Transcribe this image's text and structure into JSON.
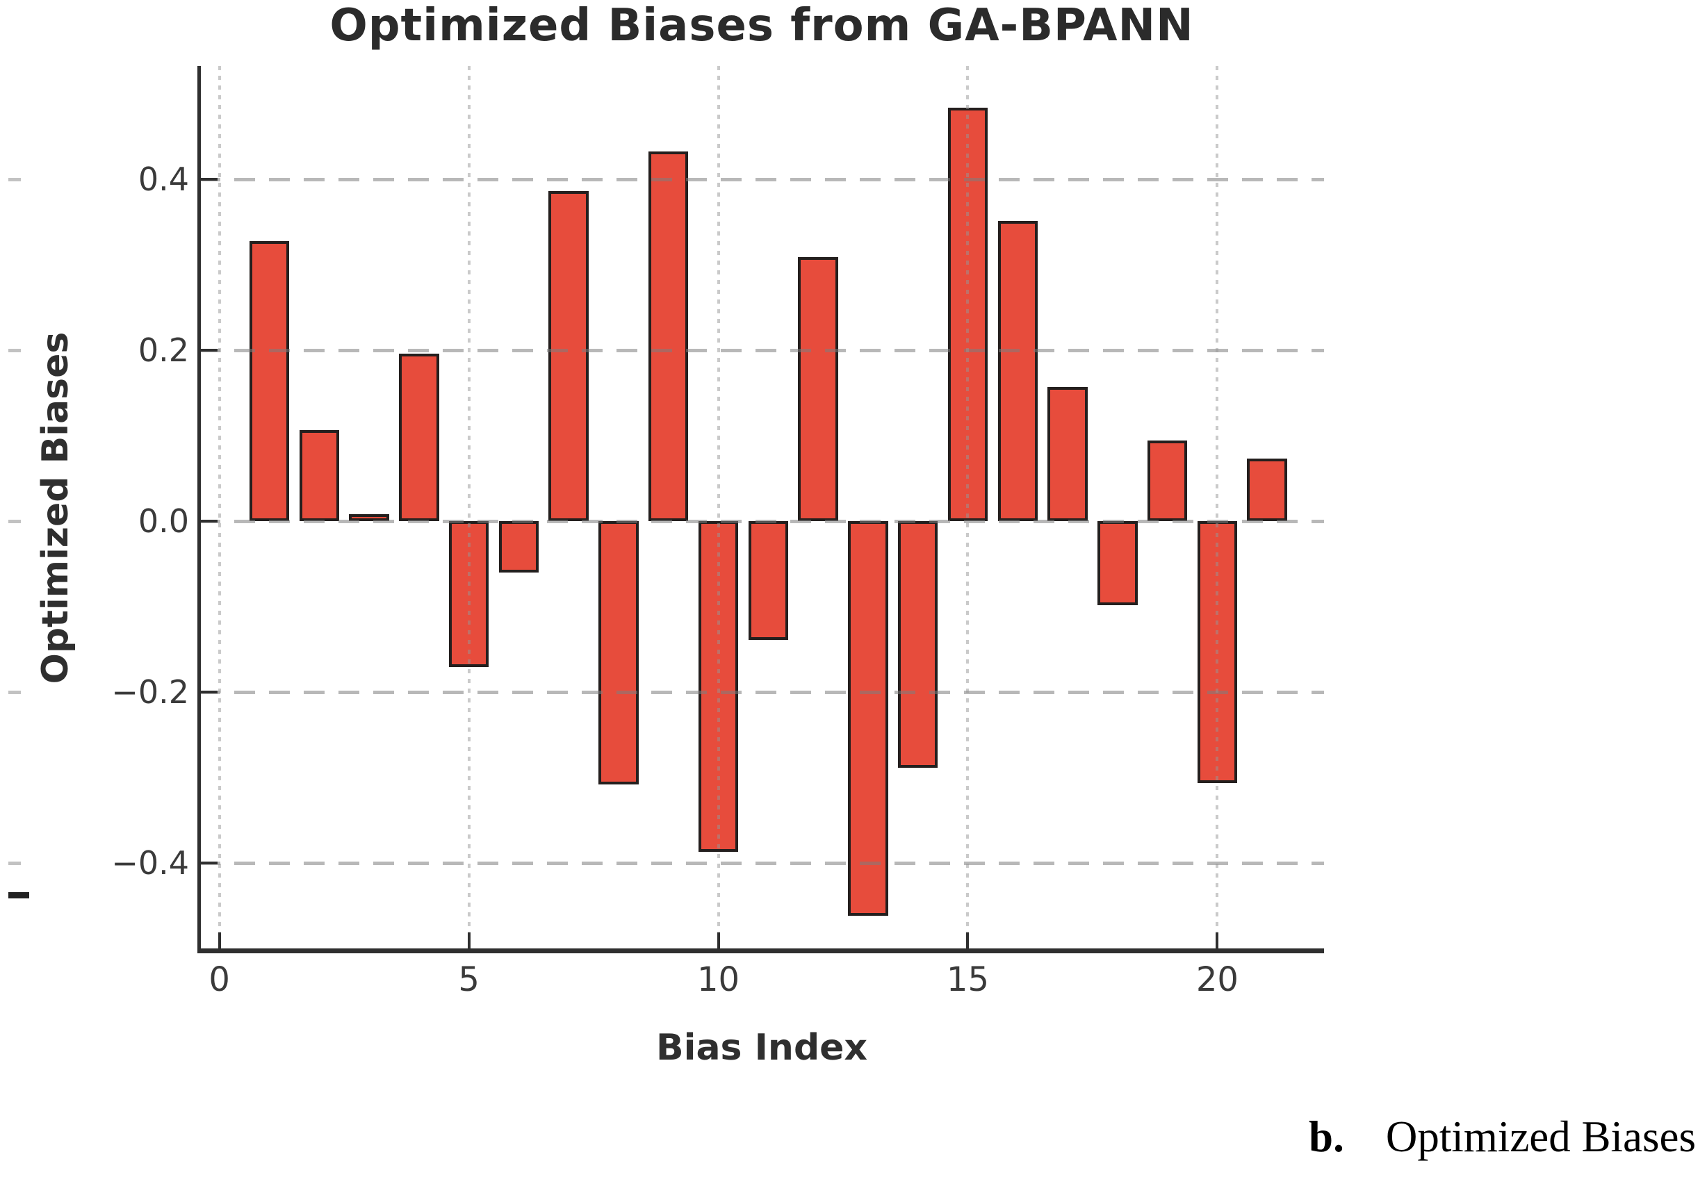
{
  "figure": {
    "caption_label": "b.",
    "caption_text": "Optimized Biases"
  },
  "chart_data": {
    "type": "bar",
    "title": "Optimized Biases from GA-BPANN",
    "xlabel": "Bias Index",
    "ylabel": "Optimized Biases",
    "x": [
      1,
      2,
      3,
      4,
      5,
      6,
      7,
      8,
      9,
      10,
      11,
      12,
      13,
      14,
      15,
      16,
      17,
      18,
      19,
      20,
      21
    ],
    "values": [
      0.327,
      0.106,
      0.008,
      0.196,
      -0.171,
      -0.06,
      0.386,
      -0.308,
      0.432,
      -0.387,
      -0.139,
      0.309,
      -0.461,
      -0.288,
      0.483,
      0.351,
      0.157,
      -0.098,
      0.094,
      -0.306,
      0.073
    ],
    "bar_width": 0.8,
    "xtick_values": [
      0,
      5,
      10,
      15,
      20
    ],
    "xtick_labels": [
      "0",
      "5",
      "10",
      "15",
      "20"
    ],
    "ytick_values": [
      0.4,
      0.2,
      0.0,
      -0.2,
      -0.4
    ],
    "ytick_labels": [
      "0.4",
      "0.2",
      "0.0",
      "−0.2",
      "−0.4"
    ],
    "xlim": [
      -0.4,
      22.14
    ],
    "ylim": [
      -0.502,
      0.532
    ],
    "grid": true,
    "legend_position": "none",
    "colors": {
      "bar_fill": "#e74c3c",
      "bar_edge": "#241f1e",
      "gridline": "#9a9a9a",
      "spine": "#2f2f2f",
      "tick_text": "#3a3a3a",
      "title_text": "#2b2b2b"
    }
  }
}
